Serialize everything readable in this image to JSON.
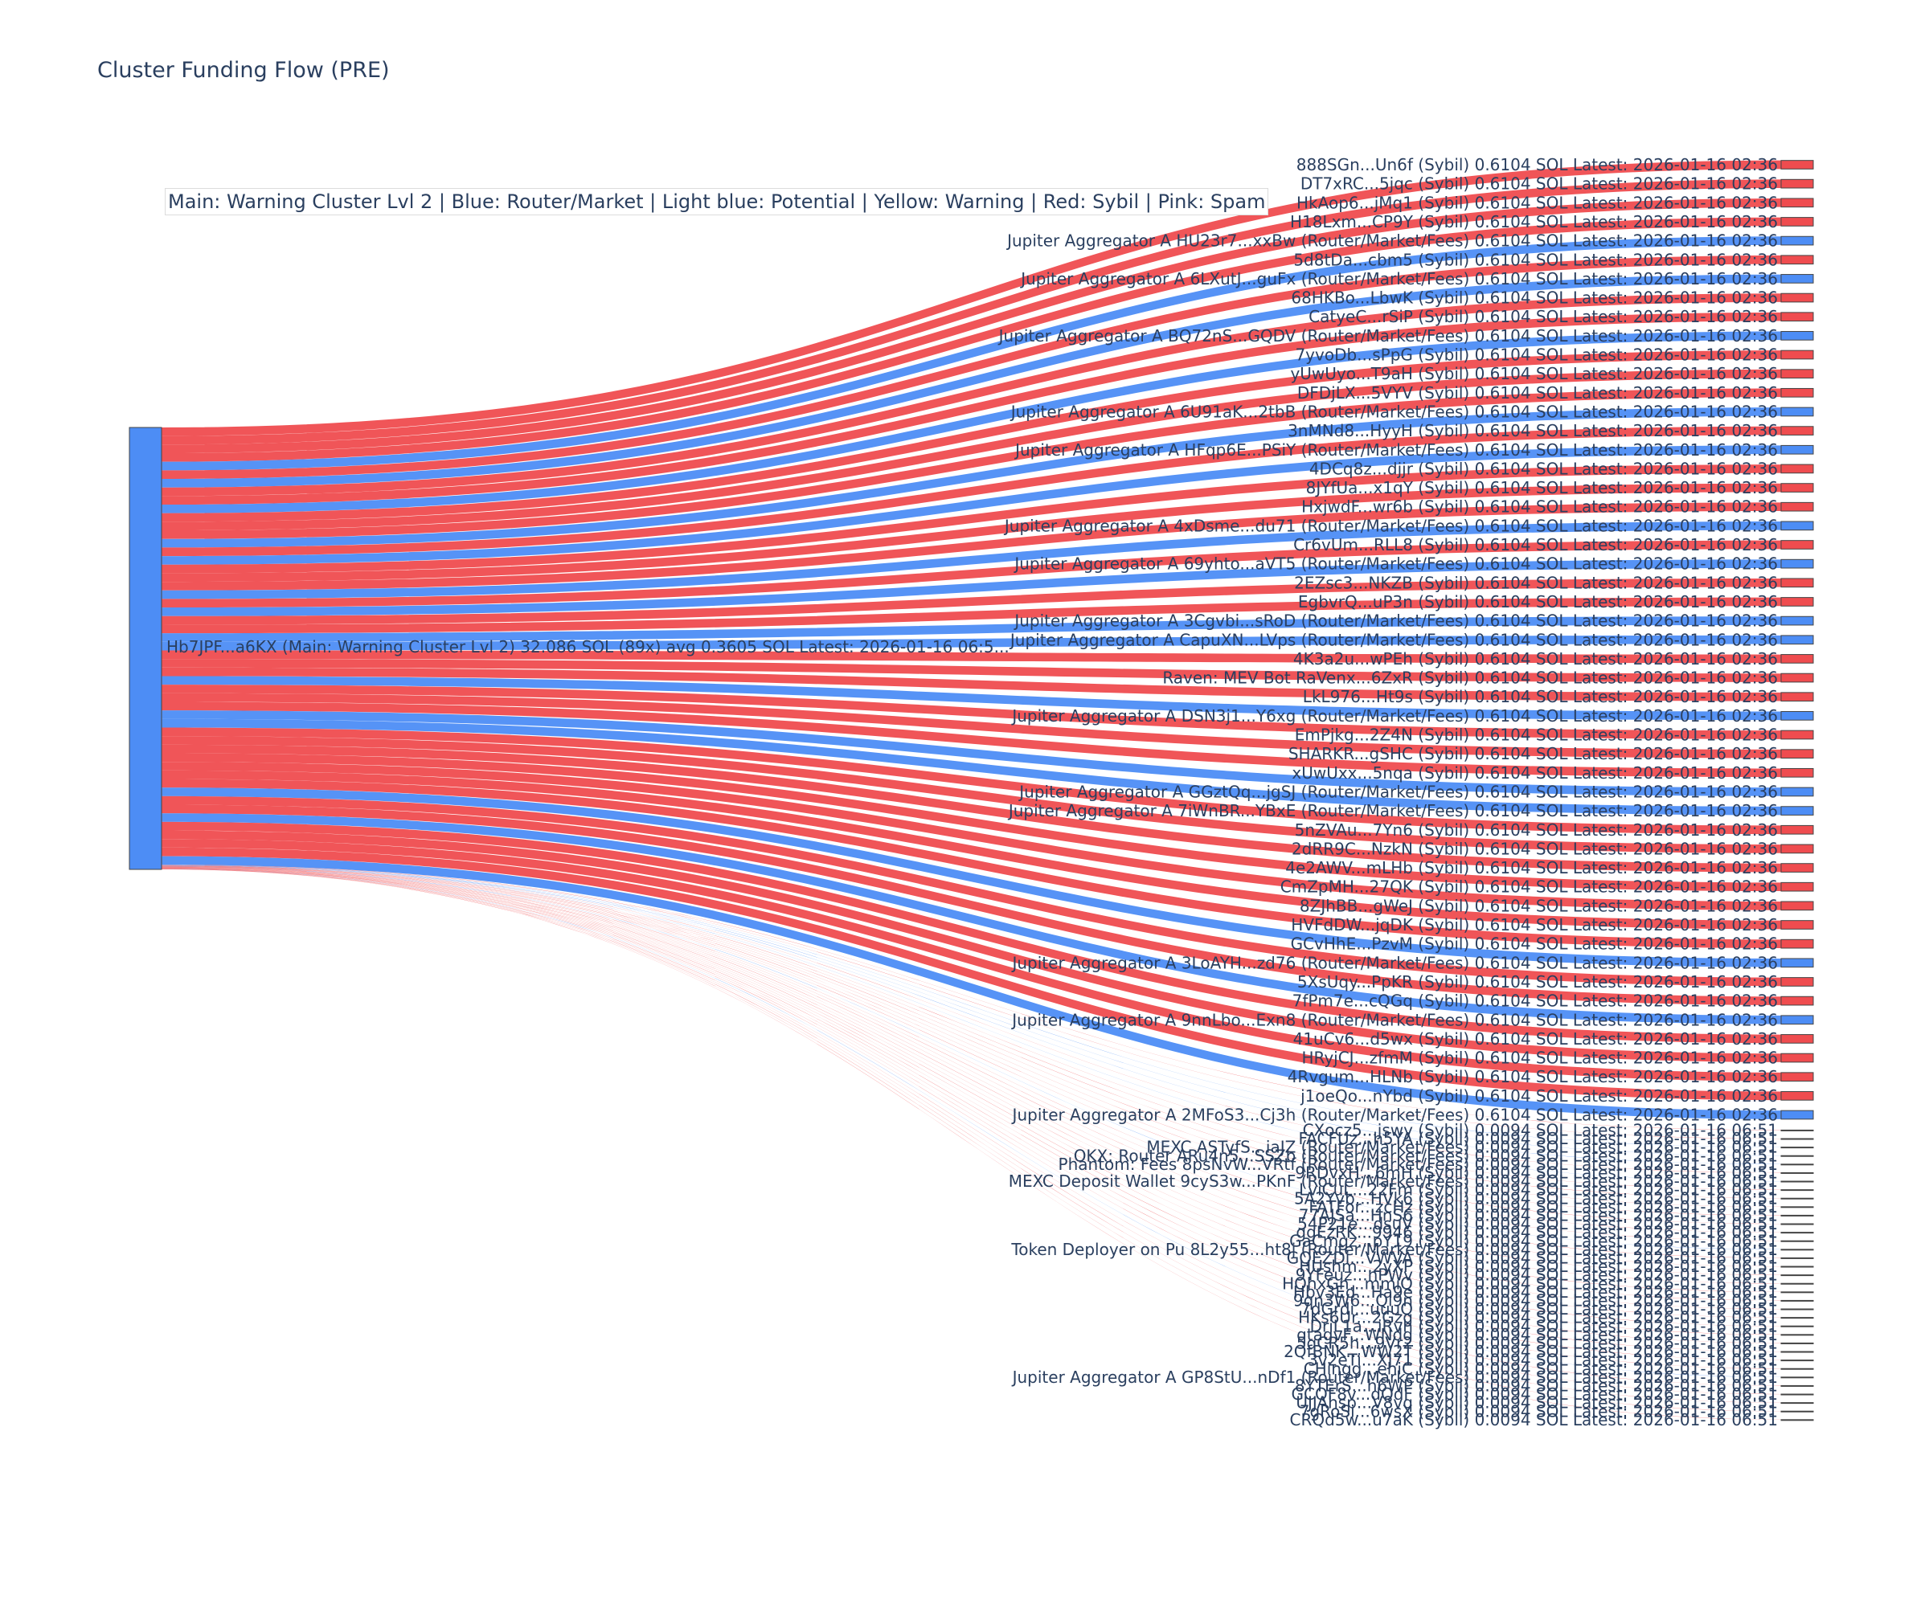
{
  "title": "Cluster Funding Flow (PRE)",
  "legend": "Main: Warning Cluster Lvl 2  |  Blue: Router/Market | Light blue: Potential | Yellow: Warning | Red: Sybil | Pink: Spam",
  "colors": {
    "sybil": "#ef4c4f",
    "router": "#4d8df5",
    "main": "#4d8df5",
    "link_sybil": "#ef4c4f",
    "link_router": "#4d8df5"
  },
  "source": {
    "label": "Hb7JPF...a6KX (Main: Warning Cluster Lvl 2) 32.086 SOL (89x) avg 0.3605 SOL Latest: 2026-01-16 06:5...",
    "type": "main"
  },
  "targets": [
    {
      "label": "888SGn...Un6f (Sybil) 0.6104 SOL Latest: 2026-01-16 02:36",
      "type": "sybil",
      "value": 0.6104
    },
    {
      "label": "DT7xRC...5jqc (Sybil) 0.6104 SOL Latest: 2026-01-16 02:36",
      "type": "sybil",
      "value": 0.6104
    },
    {
      "label": "HkAop6...jMq1 (Sybil) 0.6104 SOL Latest: 2026-01-16 02:36",
      "type": "sybil",
      "value": 0.6104
    },
    {
      "label": "H18Lxm...CP9Y (Sybil) 0.6104 SOL Latest: 2026-01-16 02:36",
      "type": "sybil",
      "value": 0.6104
    },
    {
      "label": "Jupiter Aggregator A HU23r7...xxBw (Router/Market/Fees) 0.6104 SOL Latest: 2026-01-16 02:36",
      "type": "router",
      "value": 0.6104
    },
    {
      "label": "5d8tDa...cbm5 (Sybil) 0.6104 SOL Latest: 2026-01-16 02:36",
      "type": "sybil",
      "value": 0.6104
    },
    {
      "label": "Jupiter Aggregator A 6LXutJ...guFx (Router/Market/Fees) 0.6104 SOL Latest: 2026-01-16 02:36",
      "type": "router",
      "value": 0.6104
    },
    {
      "label": "68HKBo...LbwK (Sybil) 0.6104 SOL Latest: 2026-01-16 02:36",
      "type": "sybil",
      "value": 0.6104
    },
    {
      "label": "CatyeC...rSiP (Sybil) 0.6104 SOL Latest: 2026-01-16 02:36",
      "type": "sybil",
      "value": 0.6104
    },
    {
      "label": "Jupiter Aggregator A BQ72nS...GQDV (Router/Market/Fees) 0.6104 SOL Latest: 2026-01-16 02:36",
      "type": "router",
      "value": 0.6104
    },
    {
      "label": "7yvoDb...sPpG (Sybil) 0.6104 SOL Latest: 2026-01-16 02:36",
      "type": "sybil",
      "value": 0.6104
    },
    {
      "label": "yUwUyo...T9aH (Sybil) 0.6104 SOL Latest: 2026-01-16 02:36",
      "type": "sybil",
      "value": 0.6104
    },
    {
      "label": "DFDjLX...5VYV (Sybil) 0.6104 SOL Latest: 2026-01-16 02:36",
      "type": "sybil",
      "value": 0.6104
    },
    {
      "label": "Jupiter Aggregator A 6U91aK...2tbB (Router/Market/Fees) 0.6104 SOL Latest: 2026-01-16 02:36",
      "type": "router",
      "value": 0.6104
    },
    {
      "label": "3nMNd8...HyyH (Sybil) 0.6104 SOL Latest: 2026-01-16 02:36",
      "type": "sybil",
      "value": 0.6104
    },
    {
      "label": "Jupiter Aggregator A HFqp6E...PSiY (Router/Market/Fees) 0.6104 SOL Latest: 2026-01-16 02:36",
      "type": "router",
      "value": 0.6104
    },
    {
      "label": "4DCq8z...djjr (Sybil) 0.6104 SOL Latest: 2026-01-16 02:36",
      "type": "sybil",
      "value": 0.6104
    },
    {
      "label": "8JYfUa...x1qY (Sybil) 0.6104 SOL Latest: 2026-01-16 02:36",
      "type": "sybil",
      "value": 0.6104
    },
    {
      "label": "HxjwdF...wr6b (Sybil) 0.6104 SOL Latest: 2026-01-16 02:36",
      "type": "sybil",
      "value": 0.6104
    },
    {
      "label": "Jupiter Aggregator A 4xDsme...du71 (Router/Market/Fees) 0.6104 SOL Latest: 2026-01-16 02:36",
      "type": "router",
      "value": 0.6104
    },
    {
      "label": "Cr6vUm...RLL8 (Sybil) 0.6104 SOL Latest: 2026-01-16 02:36",
      "type": "sybil",
      "value": 0.6104
    },
    {
      "label": "Jupiter Aggregator A 69yhto...aVT5 (Router/Market/Fees) 0.6104 SOL Latest: 2026-01-16 02:36",
      "type": "router",
      "value": 0.6104
    },
    {
      "label": "2EZsc3...NKZB (Sybil) 0.6104 SOL Latest: 2026-01-16 02:36",
      "type": "sybil",
      "value": 0.6104
    },
    {
      "label": "EgbvrQ...uP3n (Sybil) 0.6104 SOL Latest: 2026-01-16 02:36",
      "type": "sybil",
      "value": 0.6104
    },
    {
      "label": "Jupiter Aggregator A 3Cgvbi...sRoD (Router/Market/Fees) 0.6104 SOL Latest: 2026-01-16 02:36",
      "type": "router",
      "value": 0.6104
    },
    {
      "label": "Jupiter Aggregator A CapuXN...LVps (Router/Market/Fees) 0.6104 SOL Latest: 2026-01-16 02:36",
      "type": "router",
      "value": 0.6104
    },
    {
      "label": "4K3a2u...wPEh (Sybil) 0.6104 SOL Latest: 2026-01-16 02:36",
      "type": "sybil",
      "value": 0.6104
    },
    {
      "label": "Raven: MEV Bot RaVenx...6ZxR (Sybil) 0.6104 SOL Latest: 2026-01-16 02:36",
      "type": "sybil",
      "value": 0.6104
    },
    {
      "label": "LkL976...Ht9s (Sybil) 0.6104 SOL Latest: 2026-01-16 02:36",
      "type": "sybil",
      "value": 0.6104
    },
    {
      "label": "Jupiter Aggregator A DSN3j1...Y6xg (Router/Market/Fees) 0.6104 SOL Latest: 2026-01-16 02:36",
      "type": "router",
      "value": 0.6104
    },
    {
      "label": "EmPjkg...2Z4N (Sybil) 0.6104 SOL Latest: 2026-01-16 02:36",
      "type": "sybil",
      "value": 0.6104
    },
    {
      "label": "SHARKR...gSHC (Sybil) 0.6104 SOL Latest: 2026-01-16 02:36",
      "type": "sybil",
      "value": 0.6104
    },
    {
      "label": "xUwUxx...5nqa (Sybil) 0.6104 SOL Latest: 2026-01-16 02:36",
      "type": "sybil",
      "value": 0.6104
    },
    {
      "label": "Jupiter Aggregator A GGztQq...jgSJ (Router/Market/Fees) 0.6104 SOL Latest: 2026-01-16 02:36",
      "type": "router",
      "value": 0.6104
    },
    {
      "label": "Jupiter Aggregator A 7iWnBR...YBxE (Router/Market/Fees) 0.6104 SOL Latest: 2026-01-16 02:36",
      "type": "router",
      "value": 0.6104
    },
    {
      "label": "5nZVAu...7Yn6 (Sybil) 0.6104 SOL Latest: 2026-01-16 02:36",
      "type": "sybil",
      "value": 0.6104
    },
    {
      "label": "2dRR9C...NzkN (Sybil) 0.6104 SOL Latest: 2026-01-16 02:36",
      "type": "sybil",
      "value": 0.6104
    },
    {
      "label": "4e2AWV...mLHb (Sybil) 0.6104 SOL Latest: 2026-01-16 02:36",
      "type": "sybil",
      "value": 0.6104
    },
    {
      "label": "CmZpMH...27QK (Sybil) 0.6104 SOL Latest: 2026-01-16 02:36",
      "type": "sybil",
      "value": 0.6104
    },
    {
      "label": "8ZJhBB...gWeJ (Sybil) 0.6104 SOL Latest: 2026-01-16 02:36",
      "type": "sybil",
      "value": 0.6104
    },
    {
      "label": "HVFdDW...jqDK (Sybil) 0.6104 SOL Latest: 2026-01-16 02:36",
      "type": "sybil",
      "value": 0.6104
    },
    {
      "label": "GCvHhE...PzvM (Sybil) 0.6104 SOL Latest: 2026-01-16 02:36",
      "type": "sybil",
      "value": 0.6104
    },
    {
      "label": "Jupiter Aggregator A 3LoAYH...zd76 (Router/Market/Fees) 0.6104 SOL Latest: 2026-01-16 02:36",
      "type": "router",
      "value": 0.6104
    },
    {
      "label": "5XsUqy...PpKR (Sybil) 0.6104 SOL Latest: 2026-01-16 02:36",
      "type": "sybil",
      "value": 0.6104
    },
    {
      "label": "7fPm7e...cQGq (Sybil) 0.6104 SOL Latest: 2026-01-16 02:36",
      "type": "sybil",
      "value": 0.6104
    },
    {
      "label": "Jupiter Aggregator A 9nnLbo...Exn8 (Router/Market/Fees) 0.6104 SOL Latest: 2026-01-16 02:36",
      "type": "router",
      "value": 0.6104
    },
    {
      "label": "41uCv6...d5wx (Sybil) 0.6104 SOL Latest: 2026-01-16 02:36",
      "type": "sybil",
      "value": 0.6104
    },
    {
      "label": "HRyjCJ...zfmM (Sybil) 0.6104 SOL Latest: 2026-01-16 02:36",
      "type": "sybil",
      "value": 0.6104
    },
    {
      "label": "4Rvgum...HLNb (Sybil) 0.6104 SOL Latest: 2026-01-16 02:36",
      "type": "sybil",
      "value": 0.6104
    },
    {
      "label": "j1oeQo...nYbd (Sybil) 0.6104 SOL Latest: 2026-01-16 02:36",
      "type": "sybil",
      "value": 0.6104
    },
    {
      "label": "Jupiter Aggregator A 2MFoS3...Cj3h (Router/Market/Fees) 0.6104 SOL Latest: 2026-01-16 02:36",
      "type": "router",
      "value": 0.6104
    },
    {
      "label": "CXocz5...jswy (Sybil) 0.0094 SOL Latest: 2026-01-16 06:51",
      "type": "sybil",
      "value": 0.0094
    },
    {
      "label": "FACFUz...h5YA (Sybil) 0.0094 SOL Latest: 2026-01-16 06:51",
      "type": "sybil",
      "value": 0.0094
    },
    {
      "label": "MEXC ASTyfS...iaJZ (Router/Market/Fees) 0.0094 SOL Latest: 2026-01-16 06:51",
      "type": "router",
      "value": 0.0094
    },
    {
      "label": "OKX: Router ARu4n5...SSZb (Router/Market/Fees) 0.0094 SOL Latest: 2026-01-16 06:51",
      "type": "router",
      "value": 0.0094
    },
    {
      "label": "Phantom: Fees 8psNvW...VRtf (Router/Market/Fees) 0.0094 SOL Latest: 2026-01-16 06:51",
      "type": "router",
      "value": 0.0094
    },
    {
      "label": "9RDvxH...6mH (Sybil) 0.0094 SOL Latest: 2026-01-16 06:51",
      "type": "sybil",
      "value": 0.0094
    },
    {
      "label": "MEXC Deposit Wallet 9cyS3w...PKnF (Router/Market/Fees) 0.0094 SOL Latest: 2026-01-16 06:51",
      "type": "router",
      "value": 0.0094
    },
    {
      "label": "LviCuL...22Fm (Sybil) 0.0094 SOL Latest: 2026-01-16 06:51",
      "type": "sybil",
      "value": 0.0094
    },
    {
      "label": "5A2Yvb...HVk6 (Sybil) 0.0094 SOL Latest: 2026-01-16 06:51",
      "type": "sybil",
      "value": 0.0094
    },
    {
      "label": "FATFor...zcHz (Sybil) 0.0094 SOL Latest: 2026-01-16 06:51",
      "type": "sybil",
      "value": 0.0094
    },
    {
      "label": "77AJSa...HnS6 (Sybil) 0.0094 SOL Latest: 2026-01-16 06:51",
      "type": "sybil",
      "value": 0.0094
    },
    {
      "label": "54P21e...dsuV (Sybil) 0.0094 SOL Latest: 2026-01-16 06:51",
      "type": "sybil",
      "value": 0.0094
    },
    {
      "label": "ggEzRK...9946 (Sybil) 0.0094 SOL Latest: 2026-01-16 06:51",
      "type": "sybil",
      "value": 0.0094
    },
    {
      "label": "GaCmgz...pY19 (Sybil) 0.0094 SOL Latest: 2026-01-16 06:51",
      "type": "sybil",
      "value": 0.0094
    },
    {
      "label": "Token Deployer on Pu 8L2y55...ht8j (Router/Market/Fees) 0.0094 SOL Latest: 2026-01-16 06:51",
      "type": "router",
      "value": 0.0094
    },
    {
      "label": "GQEZDi...VWVA (Sybil) 0.0094 SOL Latest: 2026-01-16 06:51",
      "type": "sybil",
      "value": 0.0094
    },
    {
      "label": "HUshm...2yXP (Sybil) 0.0094 SOL Latest: 2026-01-16 06:51",
      "type": "sybil",
      "value": 0.0094
    },
    {
      "label": "9YFeuz...nPWv (Sybil) 0.0094 SOL Latest: 2026-01-16 06:51",
      "type": "sybil",
      "value": 0.0094
    },
    {
      "label": "HQhxGn...mmiQ (Sybil) 0.0094 SOL Latest: 2026-01-16 06:51",
      "type": "sybil",
      "value": 0.0094
    },
    {
      "label": "Hbv3Ed...Ha9e (Sybil) 0.0094 SOL Latest: 2026-01-16 06:51",
      "type": "sybil",
      "value": 0.0094
    },
    {
      "label": "9qn3W6...Ql9n (Sybil) 0.0094 SOL Latest: 2026-01-16 06:51",
      "type": "sybil",
      "value": 0.0094
    },
    {
      "label": "7dGrdi...uuuQ (Sybil) 0.0094 SOL Latest: 2026-01-16 06:51",
      "type": "sybil",
      "value": 0.0094
    },
    {
      "label": "HKs6Ur...2Gzg (Sybil) 0.0094 SOL Latest: 2026-01-16 06:51",
      "type": "sybil",
      "value": 0.0094
    },
    {
      "label": "DriL1a...iRvh (Sybil) 0.0094 SOL Latest: 2026-01-16 06:51",
      "type": "sybil",
      "value": 0.0094
    },
    {
      "label": "qtagvF...WNdg (Sybil) 0.0094 SOL Latest: 2026-01-16 06:51",
      "type": "sybil",
      "value": 0.0094
    },
    {
      "label": "5qCR5h...9Vr2 (Sybil) 0.0094 SOL Latest: 2026-01-16 06:51",
      "type": "sybil",
      "value": 0.0094
    },
    {
      "label": "2QfBNK...WW2T (Sybil) 0.0094 SOL Latest: 2026-01-16 06:51",
      "type": "sybil",
      "value": 0.0094
    },
    {
      "label": "3v2eTi...XJ71 (Sybil) 0.0094 SOL Latest: 2026-01-16 06:51",
      "type": "sybil",
      "value": 0.0094
    },
    {
      "label": "CHingg...ehiC (Sybil) 0.0094 SOL Latest: 2026-01-16 06:51",
      "type": "sybil",
      "value": 0.0094
    },
    {
      "label": "Jupiter Aggregator A GP8StU...nDf1 (Router/Market/Fees) 0.0094 SOL Latest: 2026-01-16 06:51",
      "type": "router",
      "value": 0.0094
    },
    {
      "label": "8YTErS...h6WP (Sybil) 0.0094 SOL Latest: 2026-01-16 06:51",
      "type": "sybil",
      "value": 0.0094
    },
    {
      "label": "GCQF8v...dQdF (Sybil) 0.0094 SOL Latest: 2026-01-16 06:51",
      "type": "sybil",
      "value": 0.0094
    },
    {
      "label": "UJJAhsp...V8vq (Sybil) 0.0094 SOL Latest: 2026-01-16 06:51",
      "type": "sybil",
      "value": 0.0094
    },
    {
      "label": "7gRoSi...6wsX (Sybil) 0.0094 SOL Latest: 2026-01-16 06:51",
      "type": "sybil",
      "value": 0.0094
    },
    {
      "label": "CRQd5w...u7aK (Sybil) 0.0094 SOL Latest: 2026-01-16 06:51",
      "type": "sybil",
      "value": 0.0094
    }
  ]
}
